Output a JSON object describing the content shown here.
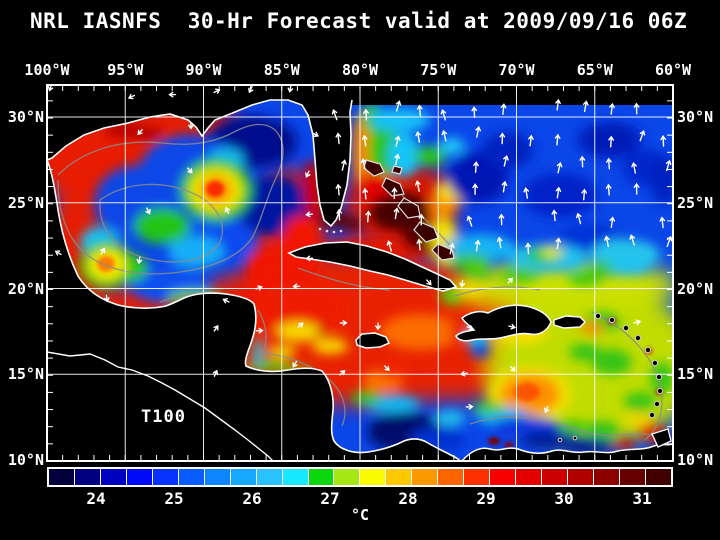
{
  "title": "NRL IASNFS  30-Hr Forecast valid at 2009/09/16 06Z",
  "field_label": "T100",
  "axes": {
    "lon_labels": [
      "100°W",
      "95°W",
      "90°W",
      "85°W",
      "80°W",
      "75°W",
      "70°W",
      "65°W",
      "60°W"
    ],
    "lat_labels": [
      "30°N",
      "25°N",
      "20°N",
      "15°N",
      "10°N"
    ]
  },
  "colorbar": {
    "tick_labels": [
      "24",
      "25",
      "26",
      "27",
      "28",
      "29",
      "30",
      "31"
    ],
    "unit": "°C",
    "segment_colors": [
      "#02003a",
      "#000080",
      "#0000c0",
      "#0008f8",
      "#0833ff",
      "#0a5cff",
      "#0c85ff",
      "#15a8ff",
      "#28c3ff",
      "#18e8ff",
      "#0cd60c",
      "#a6e614",
      "#fcfc00",
      "#fcc800",
      "#fc9800",
      "#fc6400",
      "#fc3000",
      "#f80000",
      "#e40000",
      "#cc0000",
      "#b00000",
      "#8c0000",
      "#660000",
      "#400000"
    ]
  },
  "chart_data": {
    "type": "heatmap",
    "title": "NRL IASNFS 30-Hr Forecast valid at 2009/09/16 06Z",
    "variable": "T100",
    "unit": "°C",
    "colorbar_ticks": [
      24,
      25,
      26,
      27,
      28,
      29,
      30,
      31
    ],
    "colorbar_range": [
      23.3,
      31.3
    ],
    "lon_ticks_deg_west": [
      100,
      95,
      90,
      85,
      80,
      75,
      70,
      65,
      60
    ],
    "lat_ticks_deg_north": [
      30,
      25,
      20,
      15,
      10
    ],
    "overlays": [
      "white current vector arrows",
      "gray bathymetry contours",
      "white coastlines",
      "white lat-lon grid"
    ]
  }
}
